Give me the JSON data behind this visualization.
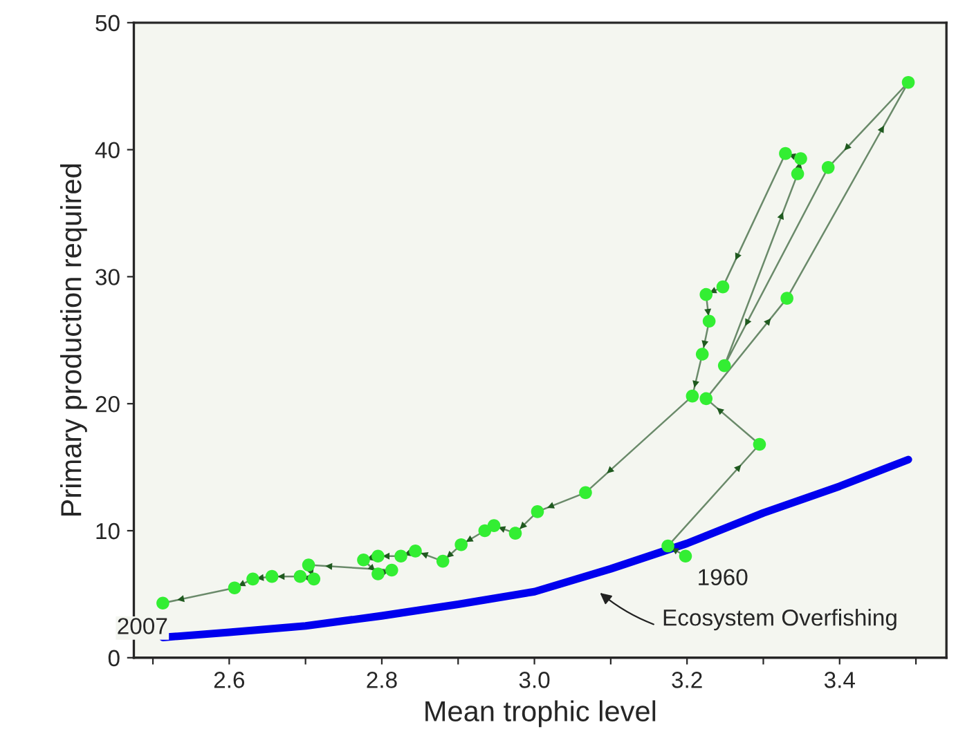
{
  "chart_data": {
    "type": "line",
    "xlabel": "Mean trophic level",
    "ylabel": "Primary production required",
    "xlim": [
      2.475,
      3.54
    ],
    "ylim": [
      0,
      50
    ],
    "xticks": [
      {
        "value": 2.5,
        "label": null
      },
      2.6,
      {
        "value": 2.7,
        "label": null
      },
      2.8,
      {
        "value": 2.9,
        "label": null
      },
      {
        "value": 3.0,
        "label": "3.0"
      },
      {
        "value": 3.1,
        "label": null
      },
      3.2,
      {
        "value": 3.3,
        "label": null
      },
      3.4,
      {
        "value": 3.5,
        "label": null
      }
    ],
    "yticks": [
      0,
      10,
      20,
      30,
      40,
      50
    ],
    "grid": false,
    "legend": false,
    "series": [
      {
        "color": "#0000ee",
        "marker": "none",
        "x": [
          2.513,
          2.6,
          2.7,
          2.8,
          2.9,
          3.0,
          3.1,
          3.2,
          3.3,
          3.4,
          3.49
        ],
        "values": [
          1.6,
          2.0,
          2.5,
          3.3,
          4.2,
          5.2,
          7.0,
          9.0,
          11.4,
          13.5,
          15.6
        ]
      },
      {
        "color": "#33ee33",
        "marker": "circle",
        "x": [
          3.198,
          3.175,
          3.295,
          3.225,
          3.331,
          3.49,
          3.385,
          3.249,
          3.345,
          3.349,
          3.329,
          3.247,
          3.225,
          3.229,
          3.22,
          3.207,
          3.067,
          3.004,
          2.975,
          2.947,
          2.935,
          2.904,
          2.88,
          2.844,
          2.825,
          2.795,
          2.776,
          2.795,
          2.813,
          2.704,
          2.711,
          2.693,
          2.656,
          2.631,
          2.607,
          2.513
        ],
        "values": [
          8.0,
          8.8,
          16.8,
          20.4,
          28.3,
          45.3,
          38.6,
          23.0,
          38.1,
          39.3,
          39.7,
          29.2,
          28.6,
          26.5,
          23.9,
          20.6,
          13.0,
          11.5,
          9.8,
          10.4,
          10.0,
          8.9,
          7.6,
          8.4,
          8.0,
          8.0,
          7.7,
          6.6,
          6.9,
          7.3,
          6.2,
          6.4,
          6.4,
          6.2,
          5.5,
          4.3
        ]
      }
    ],
    "annotations": [
      {
        "text": "2007",
        "x": 2.513,
        "y": 4.3
      },
      {
        "text": "1960",
        "x": 3.198,
        "y": 8.0
      },
      "Ecosystem Overfishing"
    ]
  }
}
